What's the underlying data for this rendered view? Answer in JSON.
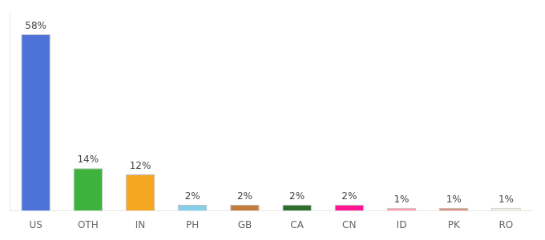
{
  "chart_data": {
    "type": "bar",
    "categories": [
      "US",
      "OTH",
      "IN",
      "PH",
      "GB",
      "CA",
      "CN",
      "ID",
      "PK",
      "RO"
    ],
    "values": [
      58,
      14,
      12,
      2,
      2,
      2,
      2,
      1,
      1,
      1
    ],
    "value_labels": [
      "58%",
      "14%",
      "12%",
      "2%",
      "2%",
      "2%",
      "2%",
      "1%",
      "1%",
      "1%"
    ],
    "colors": [
      "#4d72d8",
      "#3db33d",
      "#f5a623",
      "#87ceeb",
      "#c47a3a",
      "#2d6e2d",
      "#ff1493",
      "#ff9eb5",
      "#d4907a",
      "#f0ede0"
    ],
    "ylim": [
      0,
      65
    ],
    "data_labels": true,
    "tick_labels": "x",
    "grid": false
  }
}
